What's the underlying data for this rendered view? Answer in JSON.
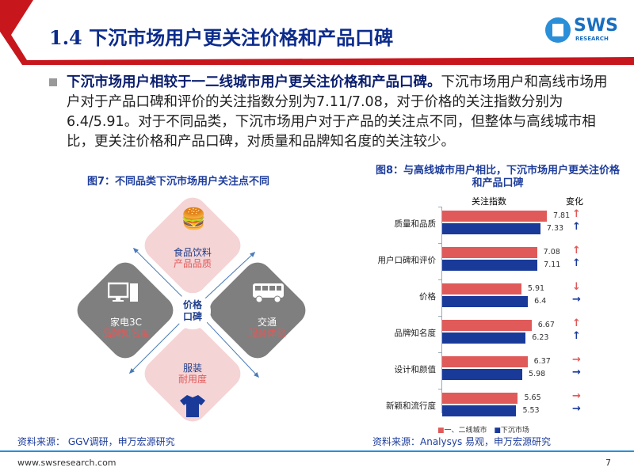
{
  "header": {
    "title": "1.4 下沉市场用户更关注价格和产品口碑",
    "logo_text": "SWS",
    "logo_sub": "RESEARCH"
  },
  "summary": {
    "bold": "下沉市场用户相较于一二线城市用户更关注价格和产品口碑。",
    "rest": "下沉市场用户和高线市场用户对于产品口碑和评价的关注指数分别为7.11/7.08，对于价格的关注指数分别为6.4/5.91。对于不同品类，下沉市场用户对于产品的关注点不同，但整体与高线城市相比，更关注价格和产品口碑，对质量和品牌知名度的关注较少。"
  },
  "fig7": {
    "title": "图7：不同品类下沉市场用户关注点不同",
    "center": [
      "价格",
      "口碑"
    ],
    "items": [
      {
        "name": "食品饮料",
        "focus": "产品品质",
        "icon": "burger-drink-icon"
      },
      {
        "name": "家电3C",
        "focus": "品牌知名度",
        "icon": "computer-icon"
      },
      {
        "name": "交通",
        "focus": "服务体验",
        "icon": "bus-icon"
      },
      {
        "name": "服装",
        "focus": "耐用度",
        "icon": "tshirt-icon"
      }
    ],
    "source": "资料来源： GGV调研，申万宏源研究"
  },
  "chart_data": {
    "type": "bar",
    "title": "图8：与高线城市用户相比，下沉市场用户更关注价格和产品口碑",
    "col_index": "关注指数",
    "col_change": "变化",
    "categories": [
      "质量和品质",
      "用户口碑和评价",
      "价格",
      "品牌知名度",
      "设计和颜值",
      "新颖和流行度"
    ],
    "series": [
      {
        "name": "一、二线城市",
        "color": "#e05a5a",
        "values": [
          7.81,
          7.08,
          5.91,
          6.67,
          6.37,
          5.65
        ],
        "change": [
          "↑",
          "↑",
          "↓",
          "↑",
          "→",
          "→"
        ]
      },
      {
        "name": "下沉市场",
        "color": "#1a3a9a",
        "values": [
          7.33,
          7.11,
          6.4,
          6.23,
          5.98,
          5.53
        ],
        "change": [
          "↑",
          "↑",
          "→",
          "↑",
          "→",
          "→"
        ]
      }
    ],
    "source": "资料来源：Analysys 易观，申万宏源研究"
  },
  "footer": {
    "url": "www.swsresearch.com",
    "page": "7"
  }
}
